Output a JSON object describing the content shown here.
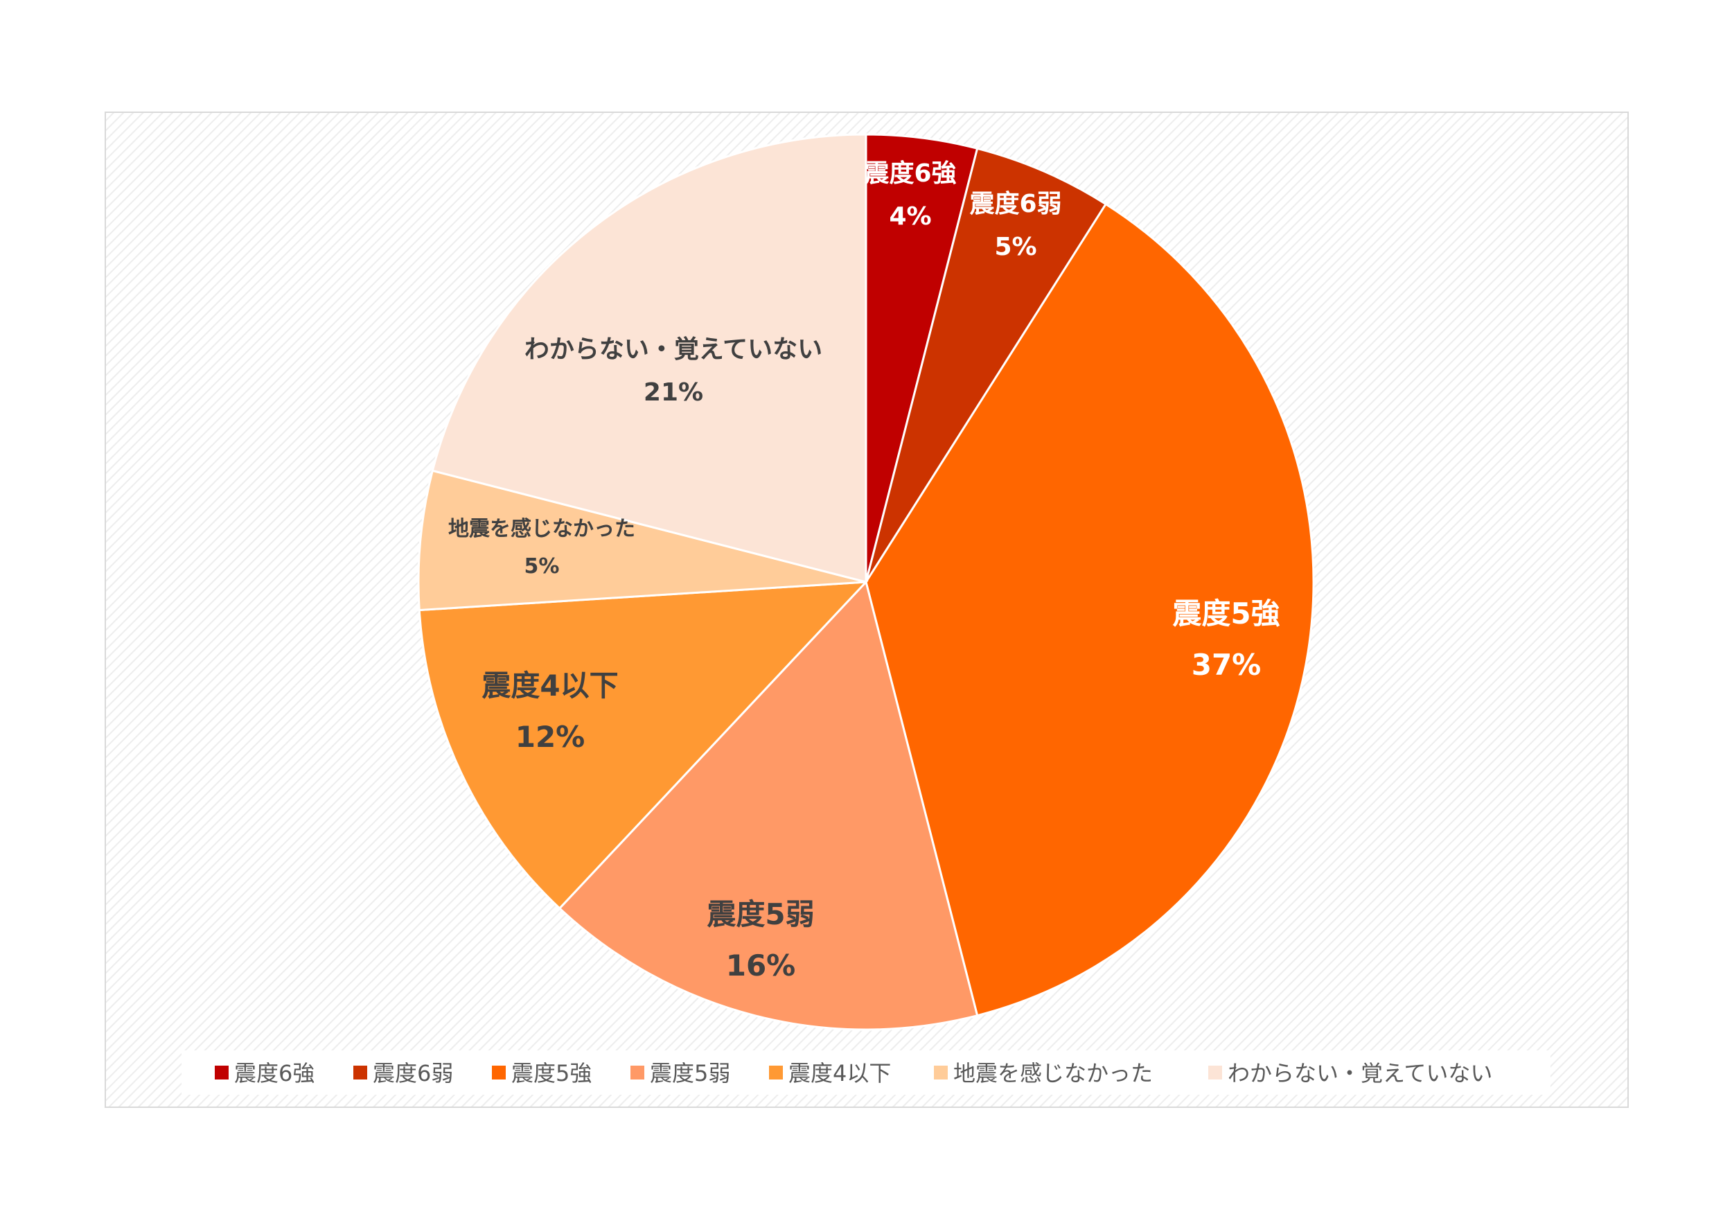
{
  "chart_data": {
    "type": "pie",
    "title": "",
    "start_angle_deg": 0,
    "direction": "clockwise",
    "legend_position": "bottom",
    "slices": [
      {
        "name": "震度6強",
        "value": 4,
        "label": "4%",
        "color": "#C00000",
        "label_color": "#FFFFFF"
      },
      {
        "name": "震度6弱",
        "value": 5,
        "label": "5%",
        "color": "#CC3300",
        "label_color": "#FFFFFF"
      },
      {
        "name": "震度5強",
        "value": 37,
        "label": "37%",
        "color": "#FF6600",
        "label_color": "#FFFFFF"
      },
      {
        "name": "震度5弱",
        "value": 16,
        "label": "16%",
        "color": "#FF9966",
        "label_color": "#404040"
      },
      {
        "name": "震度4以下",
        "value": 12,
        "label": "12%",
        "color": "#FF9933",
        "label_color": "#404040"
      },
      {
        "name": "地震を感じなかった",
        "value": 5,
        "label": "5%",
        "color": "#FFCC99",
        "label_color": "#404040"
      },
      {
        "name": "わからない・覚えていない",
        "value": 21,
        "label": "21%",
        "color": "#FCE4D6",
        "label_color": "#404040"
      }
    ]
  },
  "colors": {
    "plot_border": "#D9D9D9",
    "plot_pattern": "#EAEAEA",
    "legend_text": "#595959"
  }
}
